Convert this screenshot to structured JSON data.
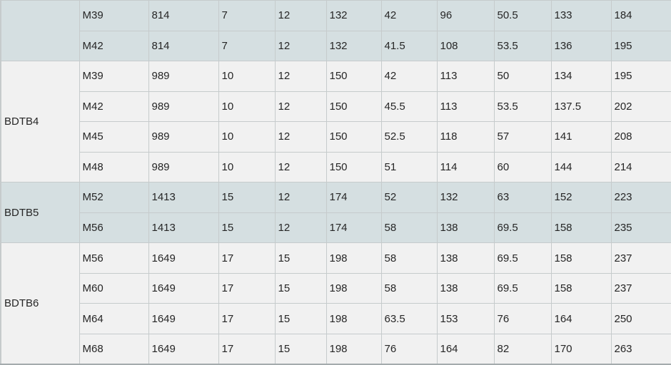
{
  "chart_data": {
    "type": "table",
    "header_row_visible": false,
    "groups": [
      {
        "label": "",
        "shade": "blue",
        "rows": [
          [
            "M39",
            814,
            7,
            12,
            132,
            42,
            96,
            50.5,
            133,
            184
          ],
          [
            "M42",
            814,
            7,
            12,
            132,
            41.5,
            108,
            53.5,
            136,
            195
          ]
        ]
      },
      {
        "label": "BDTB4",
        "shade": "light",
        "rows": [
          [
            "M39",
            989,
            10,
            12,
            150,
            42,
            113,
            50,
            134,
            195
          ],
          [
            "M42",
            989,
            10,
            12,
            150,
            45.5,
            113,
            53.5,
            137.5,
            202
          ],
          [
            "M45",
            989,
            10,
            12,
            150,
            52.5,
            118,
            57,
            141,
            208
          ],
          [
            "M48",
            989,
            10,
            12,
            150,
            51,
            114,
            60,
            144,
            214
          ]
        ]
      },
      {
        "label": "BDTB5",
        "shade": "blue",
        "rows": [
          [
            "M52",
            1413,
            15,
            12,
            174,
            52,
            132,
            63,
            152,
            223
          ],
          [
            "M56",
            1413,
            15,
            12,
            174,
            58,
            138,
            69.5,
            158,
            235
          ]
        ]
      },
      {
        "label": "BDTB6",
        "shade": "light",
        "rows": [
          [
            "M56",
            1649,
            17,
            15,
            198,
            58,
            138,
            69.5,
            158,
            237
          ],
          [
            "M60",
            1649,
            17,
            15,
            198,
            58,
            138,
            69.5,
            158,
            237
          ],
          [
            "M64",
            1649,
            17,
            15,
            198,
            63.5,
            153,
            76,
            164,
            250
          ],
          [
            "M68",
            1649,
            17,
            15,
            198,
            76,
            164,
            82,
            170,
            263
          ]
        ]
      }
    ]
  },
  "colors": {
    "blue_row_bg": "#d5dfe1",
    "light_row_bg": "#f1f1f1",
    "grid_border": "#c6cbcc",
    "outer_bottom_border": "#a4abad",
    "text": "#262626"
  }
}
